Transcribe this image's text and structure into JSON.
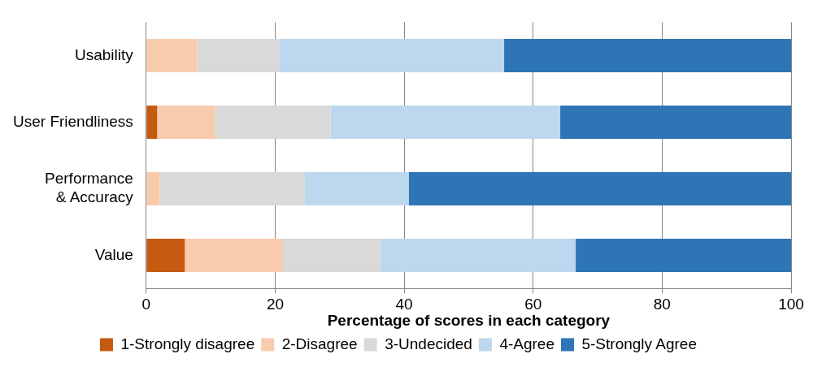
{
  "chart_data": {
    "type": "bar",
    "orientation": "horizontal",
    "stacked": true,
    "xlabel": "Percentage of scores in each category",
    "categories": [
      "Usability",
      "User Friendliness",
      "Performance & Accuracy",
      "Value"
    ],
    "series": [
      {
        "name": "1-Strongly disagree",
        "color": "#c55a11",
        "values": [
          0,
          1.7,
          0,
          6.0
        ]
      },
      {
        "name": "2-Disagree",
        "color": "#f8cbad",
        "values": [
          7.9,
          9.0,
          2.1,
          15.2
        ]
      },
      {
        "name": "3-Undecided",
        "color": "#d9d9d9",
        "values": [
          12.7,
          17.9,
          22.5,
          15.1
        ]
      },
      {
        "name": "4-Agree",
        "color": "#bdd7ee",
        "values": [
          34.9,
          35.6,
          16.1,
          30.3
        ]
      },
      {
        "name": "5-Strongly Agree",
        "color": "#2e75b6",
        "values": [
          44.5,
          35.8,
          59.3,
          33.4
        ]
      }
    ],
    "xlim": [
      0,
      100
    ],
    "xticks": [
      0,
      20,
      40,
      60,
      80,
      100
    ],
    "grid": "x",
    "legend": "bottom"
  }
}
